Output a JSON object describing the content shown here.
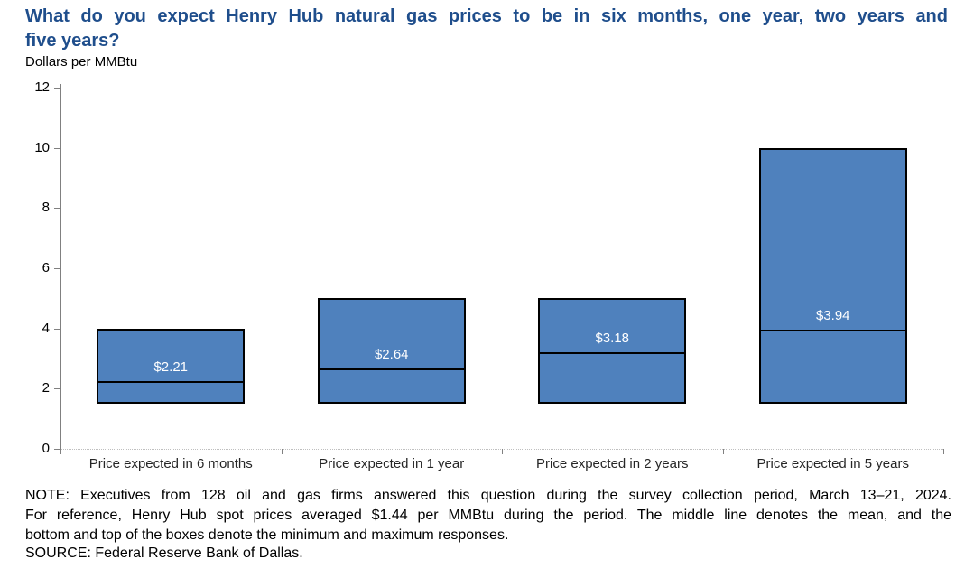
{
  "header": {
    "title_line1": "What do you expect Henry Hub natural gas prices to be in six months, one year, two years and",
    "title_line2": "five years?",
    "units_label": "Dollars per MMBtu"
  },
  "chart_data": {
    "type": "bar",
    "subtype": "min-max-mean-range-boxes",
    "title": "What do you expect Henry Hub natural gas prices to be in six months, one year, two years and five years?",
    "ylabel": "Dollars per MMBtu",
    "xlabel": "",
    "ylim": [
      0,
      12
    ],
    "yticks": [
      0,
      2,
      4,
      6,
      8,
      10,
      12
    ],
    "grid": false,
    "legend": "none",
    "categories": [
      "Price expected in 6 months",
      "Price expected in 1 year",
      "Price expected in 2 years",
      "Price expected in 5 years"
    ],
    "series": [
      {
        "name": "minimum",
        "values": [
          1.5,
          1.5,
          1.5,
          1.5
        ]
      },
      {
        "name": "maximum",
        "values": [
          4.0,
          5.0,
          5.0,
          10.0
        ]
      },
      {
        "name": "mean",
        "values": [
          2.21,
          2.64,
          3.18,
          3.94
        ]
      }
    ],
    "point_labels": [
      "$2.21",
      "$2.64",
      "$3.18",
      "$3.94"
    ],
    "colors": {
      "bar_fill": "#4F81BD",
      "bar_border": "#000000",
      "mean_line": "#000000",
      "bar_label": "#FFFFFF",
      "title": "#1F4E8C",
      "axis": "#808080",
      "baseline": "#BFBFBF",
      "category_label": "#262626",
      "tick_label": "#000000"
    }
  },
  "footer": {
    "note_lines": [
      "NOTE: Executives from 128 oil and gas firms answered this question during the survey collection period, March 13–21, 2024.",
      "For reference, Henry Hub spot prices averaged $1.44 per MMBtu during the period. The middle line denotes the mean, and the",
      "bottom and top of the boxes denote the minimum and maximum responses."
    ],
    "source": "SOURCE: Federal Reserve Bank of Dallas."
  }
}
